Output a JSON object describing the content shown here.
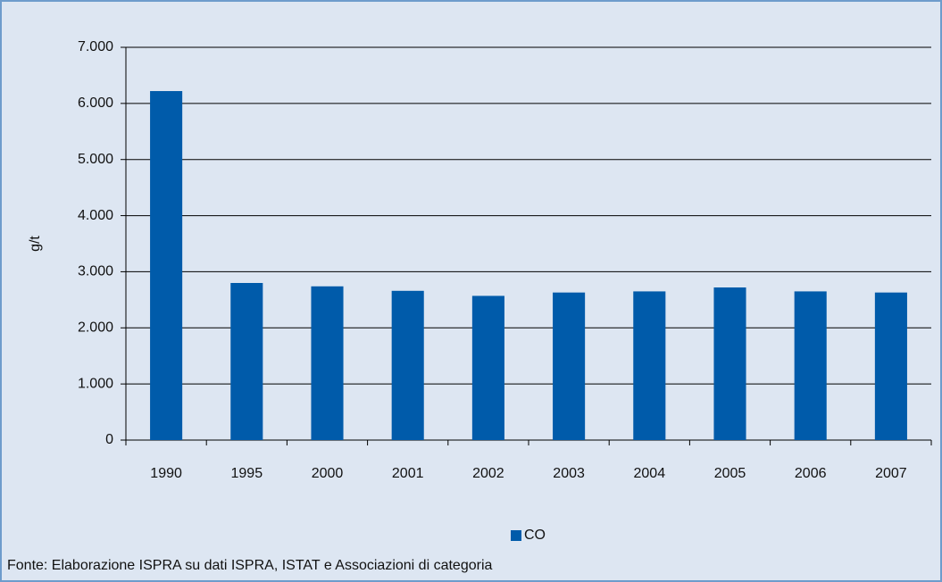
{
  "chart_data": {
    "type": "bar",
    "y_label": "g/t",
    "categories": [
      "1990",
      "1995",
      "2000",
      "2001",
      "2002",
      "2003",
      "2004",
      "2005",
      "2006",
      "2007"
    ],
    "series": [
      {
        "name": "CO",
        "color": "#005baa",
        "values": [
          6220,
          2800,
          2740,
          2660,
          2570,
          2630,
          2650,
          2720,
          2650,
          2630
        ]
      }
    ],
    "ylim": [
      0,
      7000
    ],
    "yticks": [
      0,
      {
        "value": 1000,
        "label": "1.000"
      },
      {
        "value": 2000,
        "label": "2.000"
      },
      {
        "value": 3000,
        "label": "3.000"
      },
      {
        "value": 4000,
        "label": "4.000"
      },
      {
        "value": 5000,
        "label": "5.000"
      },
      {
        "value": 6000,
        "label": "6.000"
      },
      {
        "value": 7000,
        "label": "7.000"
      }
    ],
    "grid": true,
    "legend": "bottom",
    "source": "Fonte: Elaborazione ISPRA su dati ISPRA, ISTAT e Associazioni di categoria"
  }
}
